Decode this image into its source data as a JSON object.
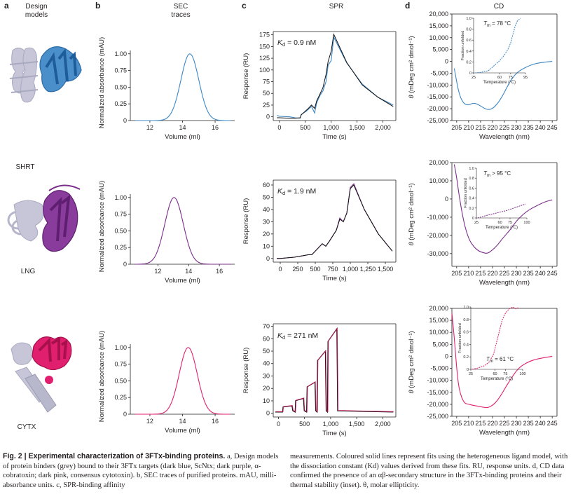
{
  "panel_labels": {
    "a": "a",
    "b": "b",
    "c": "c",
    "d": "d"
  },
  "headers": {
    "design": [
      "Design",
      "models"
    ],
    "sec": [
      "SEC",
      "traces"
    ],
    "spr": "SPR",
    "cd": "CD"
  },
  "proteins": [
    "SHRT",
    "LNG",
    "CYTX"
  ],
  "colors": {
    "shrt": "#3c86c4",
    "lng": "#7b2d8b",
    "cytx": "#e0206e",
    "grey": "#c6c6d8",
    "text": "#231f20"
  },
  "axis_labels": {
    "sec_y": "Normalized absorbance (mAU)",
    "sec_x": "Volume (ml)",
    "spr_y": "Response (RU)",
    "spr_x": "Time (s)",
    "cd_y_theta": "θ",
    "cd_y_units": "(mDeg cm² dmol⁻¹)",
    "cd_x": "Wavelength (nm)",
    "inset_y": "Fraction unfolded",
    "inset_x": "Temperature (°C)"
  },
  "kd": {
    "k": "K",
    "sub": "d",
    "values": [
      "= 0.9 nM",
      "= 1.9 nM",
      "= 271 nM"
    ]
  },
  "tm": {
    "t": "T",
    "sub": "m",
    "values": [
      "= 78 °C",
      "> 95 °C",
      "= 61 °C"
    ]
  },
  "chart_data": [
    {
      "type": "line",
      "panel": "b-SHRT",
      "xlabel": "Volume (ml)",
      "ylabel": "Normalized absorbance (mAU)",
      "xlim": [
        10.8,
        17.2
      ],
      "ylim": [
        0,
        1.05
      ],
      "x_ticks": [
        "12",
        "14",
        "16"
      ],
      "y_ticks": [
        "0",
        "0.25",
        "0.50",
        "0.75",
        "1.00"
      ],
      "peak": {
        "x": 14.45,
        "y": 1.0
      },
      "width_sigma": 0.55,
      "color": "#3c86c4"
    },
    {
      "type": "line",
      "panel": "b-LNG",
      "xlabel": "Volume (ml)",
      "ylabel": "Normalized absorbance (mAU)",
      "xlim": [
        10.2,
        17.0
      ],
      "ylim": [
        0,
        1.05
      ],
      "x_ticks": [
        "12",
        "14",
        "16"
      ],
      "y_ticks": [
        "0",
        "0.25",
        "0.50",
        "0.75",
        "1.00"
      ],
      "peak": {
        "x": 13.05,
        "y": 1.0
      },
      "width_sigma": 0.6,
      "color": "#7b2d8b"
    },
    {
      "type": "line",
      "panel": "b-CYTX",
      "xlabel": "Volume (ml)",
      "ylabel": "Normalized absorbance (mAU)",
      "xlim": [
        10.8,
        17.2
      ],
      "ylim": [
        0,
        1.05
      ],
      "x_ticks": [
        "12",
        "14",
        "16"
      ],
      "y_ticks": [
        "0",
        "0.25",
        "0.50",
        "0.75",
        "1.00"
      ],
      "peak": {
        "x": 14.35,
        "y": 1.0
      },
      "width_sigma": 0.55,
      "color": "#e0206e"
    },
    {
      "type": "line",
      "panel": "c-SHRT",
      "xlabel": "Time (s)",
      "ylabel": "Response (RU)",
      "xlim": [
        -120,
        2250
      ],
      "ylim": [
        -8,
        182
      ],
      "x_ticks": [
        "0",
        "500",
        "1,000",
        "1,500",
        "2,000"
      ],
      "y_ticks": [
        "0",
        "25",
        "50",
        "75",
        "100",
        "125",
        "150",
        "175"
      ],
      "series": [
        {
          "name": "",
          "x": [
            -50,
            0,
            200,
            300,
            400,
            420,
            520,
            560,
            620,
            680,
            720,
            780,
            840,
            900,
            940,
            1000,
            1050,
            1300,
            1600,
            1900,
            2200
          ],
          "y": [
            3,
            1,
            0,
            -2,
            -3,
            5,
            12,
            16,
            22,
            8,
            30,
            45,
            55,
            75,
            110,
            120,
            170,
            115,
            70,
            42,
            25
          ]
        },
        {
          "name": "",
          "x": [
            -50,
            0,
            200,
            300,
            400,
            420,
            520,
            560,
            620,
            680,
            720,
            780,
            840,
            900,
            940,
            1000,
            1050,
            1300,
            1600,
            1900,
            2200
          ],
          "y": [
            -2,
            -2,
            -3,
            -3,
            -2,
            4,
            14,
            18,
            25,
            18,
            34,
            48,
            62,
            90,
            118,
            140,
            176,
            116,
            68,
            42,
            22
          ]
        }
      ],
      "color": "#3c86c4"
    },
    {
      "type": "line",
      "panel": "c-LNG",
      "xlabel": "Time (s)",
      "ylabel": "Response (RU)",
      "xlim": [
        -100,
        1650
      ],
      "ylim": [
        -3,
        64
      ],
      "x_ticks": [
        "0",
        "250",
        "500",
        "750",
        "1,000",
        "1,250",
        "1,500"
      ],
      "y_ticks": [
        "0",
        "10",
        "20",
        "30",
        "40",
        "50",
        "60"
      ],
      "series": [
        {
          "name": "",
          "x": [
            -50,
            0,
            200,
            300,
            400,
            450,
            500,
            600,
            650,
            700,
            800,
            850,
            900,
            950,
            1000,
            1050,
            1200,
            1400,
            1600
          ],
          "y": [
            0,
            0,
            1,
            2,
            3,
            3,
            6,
            12,
            10,
            14,
            23,
            33,
            30,
            37,
            58,
            61,
            40,
            20,
            6
          ]
        },
        {
          "name": "",
          "x": [
            -50,
            0,
            200,
            300,
            400,
            450,
            500,
            600,
            650,
            700,
            800,
            850,
            900,
            950,
            1000,
            1050,
            1200,
            1400,
            1600
          ],
          "y": [
            0,
            0,
            1,
            2,
            3,
            3,
            6,
            12,
            10,
            14,
            23,
            32,
            30,
            37,
            57,
            60,
            40,
            20,
            6
          ]
        }
      ],
      "color": "#7b2d8b"
    },
    {
      "type": "line",
      "panel": "c-CYTX",
      "xlabel": "Time (s)",
      "ylabel": "Response (RU)",
      "xlim": [
        -100,
        2250
      ],
      "ylim": [
        -3,
        72
      ],
      "x_ticks": [
        "0",
        "500",
        "1,000",
        "1,500",
        "2,000"
      ],
      "y_ticks": [
        "0",
        "10",
        "20",
        "30",
        "40",
        "50",
        "60",
        "70"
      ],
      "steps": [
        {
          "start": 80,
          "end": 260,
          "level": 6
        },
        {
          "start": 320,
          "end": 480,
          "level": 12
        },
        {
          "start": 540,
          "end": 700,
          "level": 25
        },
        {
          "start": 740,
          "end": 900,
          "level": 50
        },
        {
          "start": 940,
          "end": 1120,
          "level": 68
        }
      ],
      "baseline": 1,
      "color": "#e0206e"
    },
    {
      "type": "line",
      "panel": "d-SHRT",
      "xlabel": "Wavelength (nm)",
      "ylabel": "θ (mDeg cm² dmol⁻¹)",
      "xlim": [
        203,
        247
      ],
      "ylim": [
        -25000,
        20000
      ],
      "x_ticks": [
        "205",
        "210",
        "215",
        "220",
        "225",
        "230",
        "235",
        "240",
        "245"
      ],
      "y_ticks": [
        "20,000",
        "15,000",
        "10,000",
        "5,000",
        "0",
        "-5,000",
        "-10,000",
        "-15,000",
        "-20,000",
        "-25,000"
      ],
      "series": [
        {
          "name": "",
          "x": [
            204,
            206,
            208,
            210,
            212,
            214,
            216,
            218,
            220,
            222,
            224,
            226,
            228,
            230,
            232,
            236,
            240,
            245
          ],
          "y": [
            -3000,
            -14000,
            -18000,
            -18500,
            -17500,
            -18200,
            -19500,
            -20500,
            -20000,
            -18000,
            -15000,
            -11000,
            -7500,
            -5000,
            -3500,
            -1500,
            -500,
            0
          ]
        }
      ],
      "color": "#3c86c4"
    },
    {
      "type": "line",
      "panel": "d-LNG",
      "xlabel": "Wavelength (nm)",
      "ylabel": "θ (mDeg cm² dmol⁻¹)",
      "xlim": [
        203,
        247
      ],
      "ylim": [
        -37000,
        20000
      ],
      "x_ticks": [
        "205",
        "210",
        "215",
        "220",
        "225",
        "230",
        "235",
        "240",
        "245"
      ],
      "y_ticks": [
        "20,000",
        "10,000",
        "0",
        "-10,000",
        "-20,000",
        "-30,000"
      ],
      "series": [
        {
          "name": "",
          "x": [
            204,
            205,
            206,
            208,
            210,
            212,
            214,
            216,
            218,
            220,
            222,
            224,
            226,
            228,
            230,
            234,
            238,
            242,
            245
          ],
          "y": [
            19000,
            12000,
            2000,
            -13000,
            -22000,
            -26000,
            -28500,
            -29500,
            -30000,
            -28000,
            -25500,
            -22000,
            -19000,
            -16000,
            -12000,
            -7000,
            -4000,
            -1500,
            -500
          ]
        }
      ],
      "color": "#7b2d8b"
    },
    {
      "type": "line",
      "panel": "d-CYTX",
      "xlabel": "Wavelength (nm)",
      "ylabel": "θ (mDeg cm² dmol⁻¹)",
      "xlim": [
        203,
        247
      ],
      "ylim": [
        -25000,
        20000
      ],
      "x_ticks": [
        "205",
        "210",
        "215",
        "220",
        "225",
        "230",
        "235",
        "240",
        "245"
      ],
      "y_ticks": [
        "20,000",
        "15,000",
        "10,000",
        "5,000",
        "0",
        "-5,000",
        "-10,000",
        "-15,000",
        "-20,000",
        "-25,000"
      ],
      "series": [
        {
          "name": "",
          "x": [
            203,
            204,
            205,
            206,
            208,
            210,
            212,
            214,
            216,
            218,
            220,
            222,
            224,
            226,
            228,
            230,
            232,
            236,
            240,
            245
          ],
          "y": [
            18000,
            8000,
            -5000,
            -14000,
            -19500,
            -20000,
            -20500,
            -20800,
            -21200,
            -21500,
            -20500,
            -18500,
            -15500,
            -12000,
            -9000,
            -6000,
            -4000,
            -1800,
            -800,
            0
          ]
        }
      ],
      "color": "#e0206e"
    },
    {
      "type": "scatter",
      "panel": "d-SHRT-inset",
      "xlabel": "Temperature (°C)",
      "ylabel": "Fraction unfolded",
      "xlim": [
        25,
        95
      ],
      "ylim": [
        0,
        1.0
      ],
      "x_ticks": [
        "25",
        "60",
        "75",
        "95"
      ],
      "y_ticks": [
        "0",
        "0.2",
        "0.4",
        "0.6",
        "0.8",
        "1.0"
      ],
      "series": [
        {
          "name": "",
          "x": [
            27,
            35,
            45,
            50,
            55,
            60,
            65,
            70,
            72,
            75,
            78,
            81,
            84,
            86,
            88
          ],
          "y": [
            0.0,
            0.01,
            0.04,
            0.1,
            0.16,
            0.22,
            0.3,
            0.4,
            0.45,
            0.55,
            0.7,
            0.85,
            0.95,
            0.97,
            1.0
          ]
        }
      ]
    },
    {
      "type": "scatter",
      "panel": "d-LNG-inset",
      "xlabel": "Temperature (°C)",
      "ylabel": "Fraction unfolded",
      "xlim": [
        25,
        100
      ],
      "ylim": [
        0,
        1.0
      ],
      "x_ticks": [
        "25",
        "60",
        "75",
        "100"
      ],
      "y_ticks": [
        "0",
        "0.2",
        "0.4",
        "0.6",
        "0.8",
        "1.0"
      ],
      "series": [
        {
          "name": "",
          "x": [
            27,
            40,
            55,
            70,
            85,
            98
          ],
          "y": [
            0.0,
            0.05,
            0.1,
            0.15,
            0.22,
            0.28
          ]
        }
      ]
    },
    {
      "type": "scatter",
      "panel": "d-CYTX-inset",
      "xlabel": "Temperature (°C)",
      "ylabel": "Fraction unfolded",
      "xlim": [
        25,
        100
      ],
      "ylim": [
        0,
        1.0
      ],
      "x_ticks": [
        "25",
        "60",
        "75",
        "100"
      ],
      "y_ticks": [
        "0",
        "0.2",
        "0.4",
        "0.6",
        "0.8",
        "1.0"
      ],
      "series": [
        {
          "name": "",
          "x": [
            27,
            35,
            45,
            52,
            58,
            62,
            66,
            70,
            74,
            78,
            82,
            86,
            90,
            94
          ],
          "y": [
            0.0,
            0.02,
            0.06,
            0.12,
            0.25,
            0.42,
            0.6,
            0.78,
            0.88,
            0.94,
            0.98,
            1.0,
            0.97,
            0.99
          ]
        }
      ]
    }
  ],
  "caption": {
    "lead": "Fig. 2 | Experimental characterization of 3FTx-binding proteins.",
    "col1": " a, Design models of protein binders (grey) bound to their 3FTx targets (dark blue, ScNtx; dark purple, α-cobratoxin; dark pink, consensus cytotoxin). b, SEC traces of purified proteins. mAU, milli-absorbance units. c, SPR-binding affinity",
    "col2": "measurements. Coloured solid lines represent fits using the heterogeneous ligand model, with the dissociation constant (Kd) values derived from these fits. RU, response units. d, CD data confirmed the presence of an αβ-secondary structure in the 3FTx-binding proteins and their thermal stability (inset). θ, molar ellipticity."
  }
}
